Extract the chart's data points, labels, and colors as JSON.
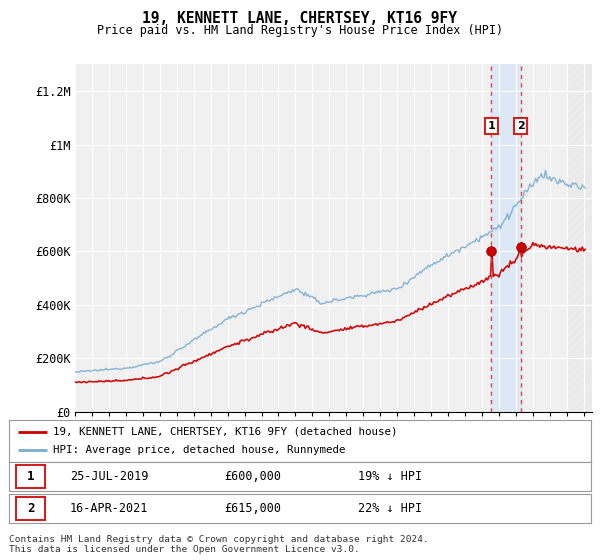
{
  "title": "19, KENNETT LANE, CHERTSEY, KT16 9FY",
  "subtitle": "Price paid vs. HM Land Registry's House Price Index (HPI)",
  "ylim": [
    0,
    1300000
  ],
  "yticks": [
    0,
    200000,
    400000,
    600000,
    800000,
    1000000,
    1200000
  ],
  "ytick_labels": [
    "£0",
    "£200K",
    "£400K",
    "£600K",
    "£800K",
    "£1M",
    "£1.2M"
  ],
  "background_color": "#ffffff",
  "plot_bg_color": "#f0f0f0",
  "highlight_bg_color": "#dde8f5",
  "grid_color": "#ffffff",
  "red_line_color": "#cc0000",
  "blue_line_color": "#7aadcf",
  "sale1_date": 2019.56,
  "sale1_price": 600000,
  "sale2_date": 2021.29,
  "sale2_price": 615000,
  "legend_line1": "19, KENNETT LANE, CHERTSEY, KT16 9FY (detached house)",
  "legend_line2": "HPI: Average price, detached house, Runnymede",
  "footer": "Contains HM Land Registry data © Crown copyright and database right 2024.\nThis data is licensed under the Open Government Licence v3.0.",
  "highlight_start": 2019.56,
  "highlight_end": 2021.29,
  "hatch_start": 2024.0,
  "xmin": 1995.0,
  "xmax": 2025.5
}
